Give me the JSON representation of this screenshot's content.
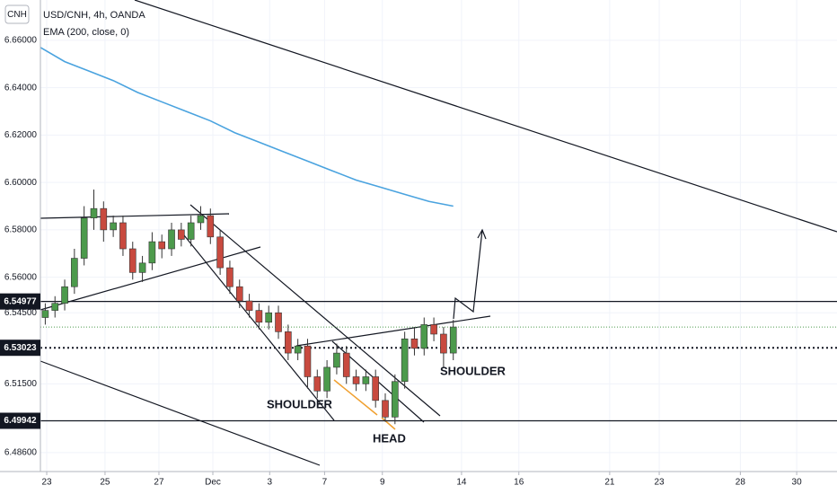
{
  "chart_data": {
    "type": "candlestick",
    "symbol_badge": "CNH",
    "title": "USD/CNH, 4h, OANDA",
    "xlim": [
      0,
      164
    ],
    "ylim": [
      6.478,
      6.677
    ],
    "grid": true,
    "colors": {
      "up": "#4c9a4c",
      "down": "#c84a3f"
    },
    "xticks": [
      {
        "value": 1.3,
        "label": "23"
      },
      {
        "value": 13.3,
        "label": "25"
      },
      {
        "value": 24.4,
        "label": "27"
      },
      {
        "value": 35.5,
        "label": "Dec"
      },
      {
        "value": 47.2,
        "label": "3"
      },
      {
        "value": 58.5,
        "label": "7"
      },
      {
        "value": 70.4,
        "label": "9"
      },
      {
        "value": 86.7,
        "label": "14"
      },
      {
        "value": 98.5,
        "label": "16"
      },
      {
        "value": 117.2,
        "label": "21"
      },
      {
        "value": 127.4,
        "label": "23"
      },
      {
        "value": 144.1,
        "label": "28"
      },
      {
        "value": 155.7,
        "label": "30"
      }
    ],
    "yticks": [
      {
        "value": 6.66,
        "label": "6.66000"
      },
      {
        "value": 6.64,
        "label": "6.64000"
      },
      {
        "value": 6.62,
        "label": "6.62000"
      },
      {
        "value": 6.6,
        "label": "6.60000"
      },
      {
        "value": 6.58,
        "label": "6.58000"
      },
      {
        "value": 6.56,
        "label": "6.56000"
      },
      {
        "value": 6.545,
        "label": "6.54500"
      },
      {
        "value": 6.515,
        "label": "6.51500"
      },
      {
        "value": 6.486,
        "label": "6.48600"
      }
    ],
    "x": [
      1,
      3,
      5,
      7,
      9,
      11,
      13,
      15,
      17,
      19,
      21,
      23,
      25,
      27,
      29,
      31,
      33,
      35,
      37,
      39,
      41,
      43,
      45,
      47,
      49,
      51,
      53,
      55,
      57,
      59,
      61,
      63,
      65,
      67,
      69,
      71,
      73,
      75,
      77,
      79,
      81,
      83,
      85
    ],
    "open": [
      6.543,
      6.546,
      6.549,
      6.556,
      6.568,
      6.585,
      6.589,
      6.58,
      6.583,
      6.572,
      6.562,
      6.566,
      6.575,
      6.572,
      6.58,
      6.576,
      6.583,
      6.586,
      6.577,
      6.564,
      6.556,
      6.55,
      6.546,
      6.541,
      6.545,
      6.537,
      6.528,
      6.531,
      6.518,
      6.512,
      6.522,
      6.528,
      6.518,
      6.515,
      6.518,
      6.508,
      6.501,
      6.516,
      6.534,
      6.53,
      6.54,
      6.536,
      6.528
    ],
    "high": [
      6.549,
      6.552,
      6.559,
      6.572,
      6.59,
      6.597,
      6.592,
      6.586,
      6.586,
      6.575,
      6.569,
      6.579,
      6.578,
      6.583,
      6.583,
      6.586,
      6.59,
      6.589,
      6.58,
      6.567,
      6.559,
      6.553,
      6.549,
      6.548,
      6.548,
      6.54,
      6.534,
      6.534,
      6.521,
      6.525,
      6.532,
      6.531,
      6.521,
      6.521,
      6.521,
      6.511,
      6.519,
      6.537,
      6.539,
      6.543,
      6.543,
      6.539,
      6.542
    ],
    "low": [
      6.54,
      6.543,
      6.546,
      6.553,
      6.565,
      6.58,
      6.575,
      6.577,
      6.569,
      6.559,
      6.558,
      6.563,
      6.568,
      6.569,
      6.573,
      6.573,
      6.58,
      6.574,
      6.561,
      6.553,
      6.547,
      6.543,
      6.538,
      6.538,
      6.534,
      6.525,
      6.525,
      6.513,
      6.509,
      6.509,
      6.519,
      6.515,
      6.512,
      6.512,
      6.505,
      6.499,
      6.498,
      6.513,
      6.527,
      6.527,
      6.533,
      6.522,
      6.525
    ],
    "close": [
      6.546,
      6.549,
      6.556,
      6.568,
      6.585,
      6.589,
      6.58,
      6.583,
      6.572,
      6.562,
      6.566,
      6.575,
      6.572,
      6.58,
      6.576,
      6.583,
      6.586,
      6.577,
      6.564,
      6.556,
      6.55,
      6.546,
      6.541,
      6.545,
      6.537,
      6.528,
      6.531,
      6.518,
      6.512,
      6.522,
      6.528,
      6.518,
      6.515,
      6.518,
      6.508,
      6.501,
      6.516,
      6.534,
      6.53,
      6.54,
      6.536,
      6.528,
      6.539
    ],
    "series": [
      {
        "name": "EMA (200, close, 0)",
        "color": "#4aa3df",
        "x": [
          0,
          5,
          10,
          15,
          20,
          25,
          30,
          35,
          40,
          45,
          50,
          55,
          60,
          65,
          70,
          75,
          80,
          85
        ],
        "values": [
          6.657,
          6.651,
          6.647,
          6.643,
          6.638,
          6.634,
          6.63,
          6.626,
          6.621,
          6.617,
          6.613,
          6.609,
          6.605,
          6.601,
          6.598,
          6.595,
          6.592,
          6.59
        ]
      }
    ],
    "levels": [
      {
        "value": 6.54977,
        "label": "6.54977",
        "style": "solid"
      },
      {
        "value": 6.53023,
        "label": "6.53023",
        "style": "dotted"
      },
      {
        "value": 6.49942,
        "label": "6.49942",
        "style": "solid"
      }
    ],
    "annotations": [
      "SHOULDER",
      "HEAD",
      "SHOULDER"
    ]
  }
}
